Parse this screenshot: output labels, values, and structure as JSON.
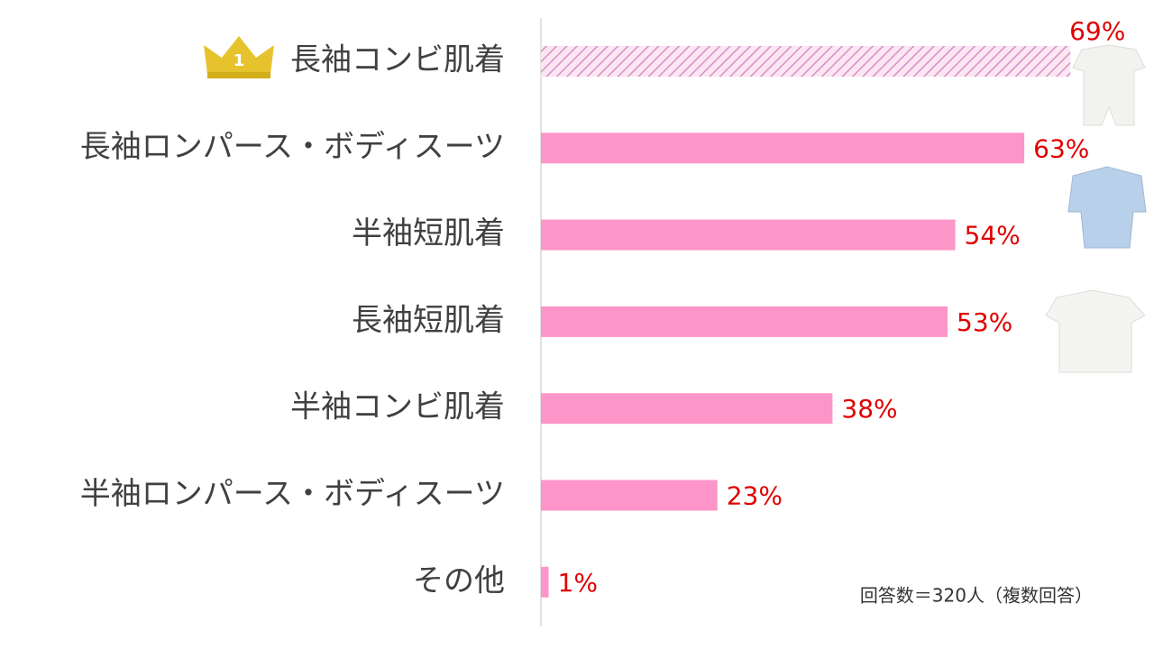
{
  "chart_data": {
    "type": "bar",
    "orientation": "horizontal",
    "categories": [
      "長袖コンビ肌着",
      "長袖ロンパース・ボディスーツ",
      "半袖短肌着",
      "長袖短肌着",
      "半袖コンビ肌着",
      "半袖ロンパース・ボディスーツ",
      "その他"
    ],
    "values": [
      69,
      63,
      54,
      53,
      38,
      23,
      1
    ],
    "value_labels": [
      "69%",
      "63%",
      "54%",
      "53%",
      "38%",
      "23%",
      "1%"
    ],
    "color": "#fd95c8",
    "badge": "1",
    "annotation": "回答数＝320人（複数回答）"
  }
}
